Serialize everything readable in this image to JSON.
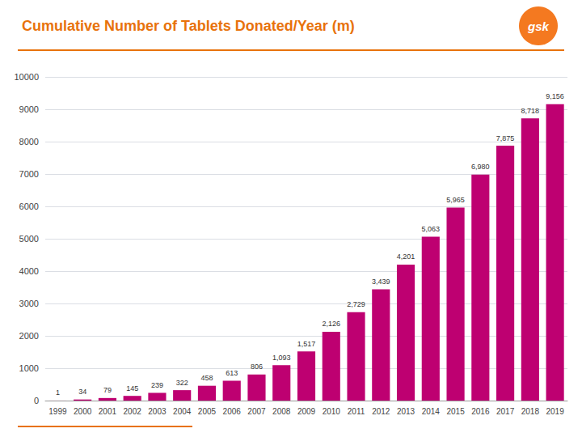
{
  "chart_data": {
    "type": "bar",
    "title": "Cumulative Number of Tablets Donated/Year (m)",
    "categories": [
      "1999",
      "2000",
      "2001",
      "2002",
      "2003",
      "2004",
      "2005",
      "2006",
      "2007",
      "2008",
      "2009",
      "2010",
      "2011",
      "2012",
      "2013",
      "2014",
      "2015",
      "2016",
      "2017",
      "2018",
      "2019"
    ],
    "values": [
      1,
      34,
      79,
      145,
      239,
      322,
      458,
      613,
      806,
      1093,
      1517,
      2126,
      2729,
      3439,
      4201,
      5063,
      5965,
      6980,
      7875,
      8718,
      9156
    ],
    "value_labels": [
      "1",
      "34",
      "79",
      "145",
      "239",
      "322",
      "458",
      "613",
      "806",
      "1,093",
      "1,517",
      "2,126",
      "2,729",
      "3,439",
      "4,201",
      "5,063",
      "5,965",
      "6,980",
      "7,875",
      "8,718",
      "9,156"
    ],
    "color": "#BE0071",
    "ylim": [
      0,
      10000
    ],
    "yticks": [
      0,
      1000,
      2000,
      3000,
      4000,
      5000,
      6000,
      7000,
      8000,
      9000,
      10000
    ],
    "grid": true,
    "data_labels": true,
    "annotations": [
      "gsk"
    ]
  }
}
